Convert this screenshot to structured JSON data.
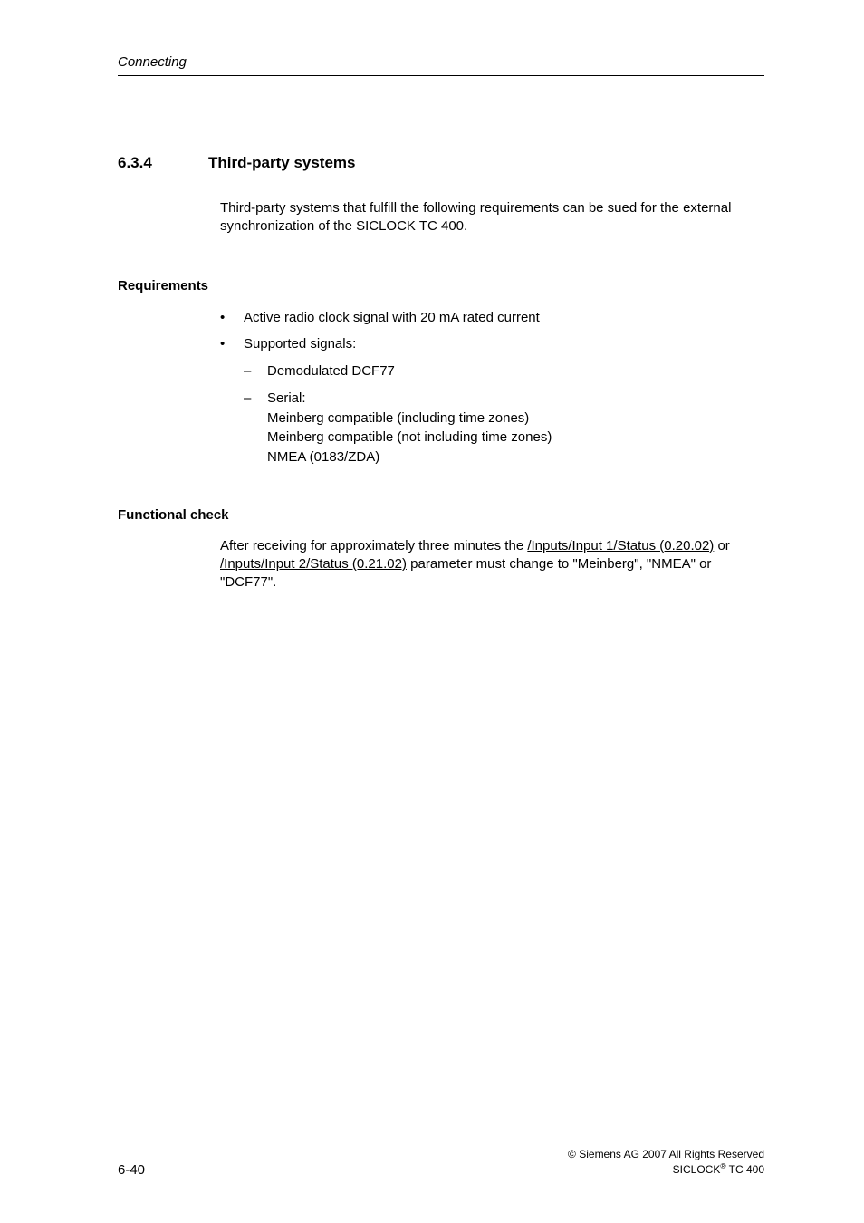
{
  "header": {
    "running": "Connecting"
  },
  "section": {
    "number": "6.3.4",
    "title": "Third-party systems"
  },
  "intro": "Third-party systems that fulfill the following requirements can be sued for the external synchronization of the SICLOCK TC 400.",
  "requirements": {
    "heading": "Requirements",
    "bullets": {
      "b0": "Active radio clock signal with 20 mA rated current",
      "b1": "Supported signals:",
      "s0": "Demodulated DCF77",
      "s1_label": "Serial:",
      "s1_line1": "Meinberg compatible (including time zones)",
      "s1_line2": "Meinberg compatible (not including time zones)",
      "s1_line3": "NMEA (0183/ZDA)"
    }
  },
  "functional": {
    "heading": "Functional check",
    "pre": "After receiving for approximately three minutes the ",
    "link1": "/Inputs/Input 1/Status (0.20.02)",
    "mid": " or ",
    "link2": "/Inputs/Input 2/Status (0.21.02)",
    "post": " parameter must change to \"Meinberg\", \"NMEA\" or \"DCF77\"."
  },
  "footer": {
    "page": "6-40",
    "copyright_pre": "© ",
    "copyright": "Siemens AG 2007 All Rights Reserved",
    "product_pre": "SICLOCK",
    "product_sup": "®",
    "product_post": " TC 400"
  }
}
